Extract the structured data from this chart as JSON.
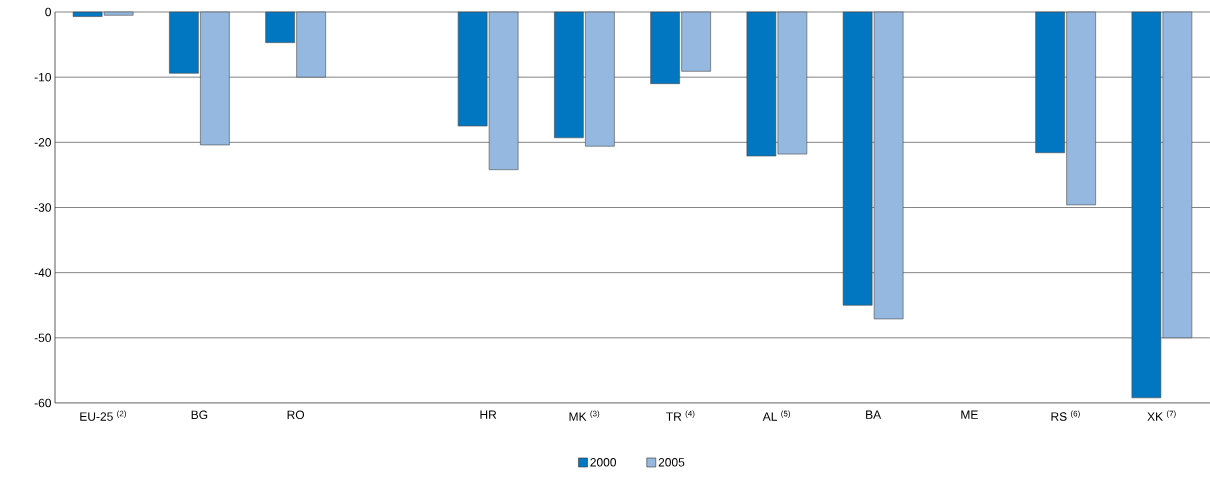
{
  "chart_data": {
    "type": "bar",
    "categories": [
      "EU-25 $^{(2)}$",
      "BG",
      "RO",
      null,
      "HR",
      "MK $^{(3)}$",
      "TR $^{(4)}$",
      "AL $^{(5)}$",
      "BA",
      "ME",
      "RS $^{(6)}$",
      "XK $^{(7)}$"
    ],
    "series": [
      {
        "name": "2000",
        "color": "#0077c0",
        "values": [
          -0.7,
          -9.4,
          -4.7,
          null,
          -17.5,
          -19.3,
          -11.0,
          -22.1,
          -45.0,
          null,
          -21.6,
          -59.2
        ]
      },
      {
        "name": "2005",
        "color": "#95b8e0",
        "values": [
          -0.5,
          -20.4,
          -10.0,
          null,
          -24.2,
          -20.6,
          -9.1,
          -21.8,
          -47.1,
          null,
          -29.6,
          -50.0
        ]
      }
    ],
    "ylim": [
      -60,
      0
    ],
    "yticks": [
      0,
      -10,
      -20,
      -30,
      -40,
      -50,
      -60
    ],
    "grid": "y",
    "legend": "bottom"
  }
}
